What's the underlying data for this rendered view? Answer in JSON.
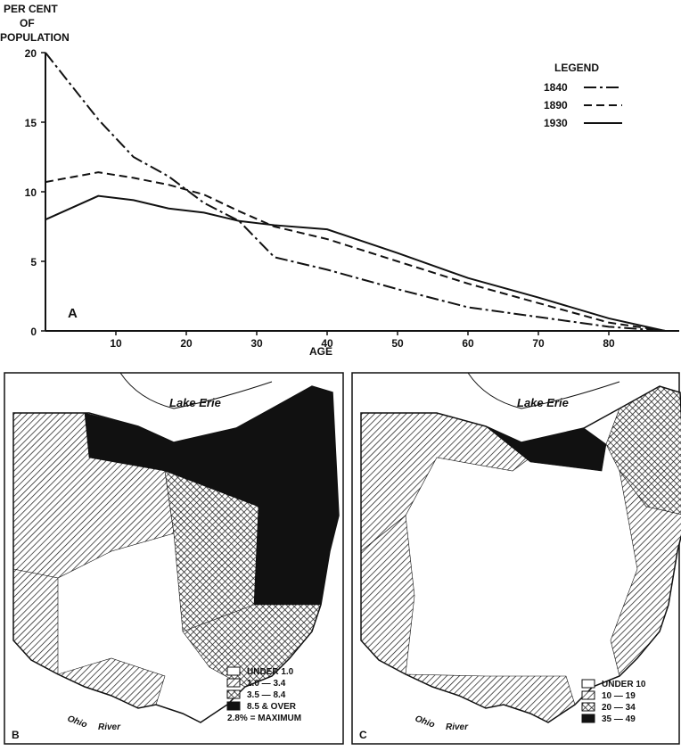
{
  "chart_data": {
    "type": "line",
    "y_label": [
      "PER CENT",
      "OF",
      "POPULATION"
    ],
    "x_label": "AGE",
    "panel_label": "A",
    "legend_title": "LEGEND",
    "xlim": [
      0,
      90
    ],
    "xticks": [
      10,
      20,
      30,
      40,
      50,
      60,
      70,
      80
    ],
    "ylim": [
      0,
      20
    ],
    "yticks": [
      0,
      5,
      10,
      15,
      20
    ],
    "x": [
      0,
      7.5,
      12.5,
      17.5,
      22.5,
      27.5,
      32.5,
      40,
      50,
      60,
      70,
      80,
      88
    ],
    "series": [
      {
        "name": "1840",
        "color": "#111111",
        "dash": "dashdot",
        "values": [
          20,
          15.2,
          12.5,
          11.1,
          9.2,
          7.9,
          5.3,
          4.4,
          3.0,
          1.7,
          1.0,
          0.3,
          0
        ]
      },
      {
        "name": "1890",
        "color": "#111111",
        "dash": "dashed",
        "values": [
          10.7,
          11.4,
          11.0,
          10.5,
          9.8,
          8.6,
          7.5,
          6.6,
          5.0,
          3.4,
          2.0,
          0.6,
          0
        ]
      },
      {
        "name": "1930",
        "color": "#111111",
        "dash": "solid",
        "values": [
          8.0,
          9.7,
          9.4,
          8.8,
          8.5,
          7.9,
          7.6,
          7.3,
          5.6,
          3.8,
          2.4,
          0.9,
          0
        ]
      }
    ]
  },
  "maps": [
    {
      "label": "B",
      "lake_label": "Lake Erie",
      "river_labels": [
        "Ohio",
        "River"
      ],
      "legend": [
        "UNDER 1.0",
        "1.0 — 3.4",
        "3.5 — 8.4",
        "8.5 & OVER"
      ],
      "note": "2.8% = MAXIMUM"
    },
    {
      "label": "C",
      "lake_label": "Lake Erie",
      "river_labels": [
        "Ohio",
        "River"
      ],
      "legend": [
        "UNDER 10",
        "10 — 19",
        "20 — 34",
        "35 — 49"
      ]
    }
  ]
}
